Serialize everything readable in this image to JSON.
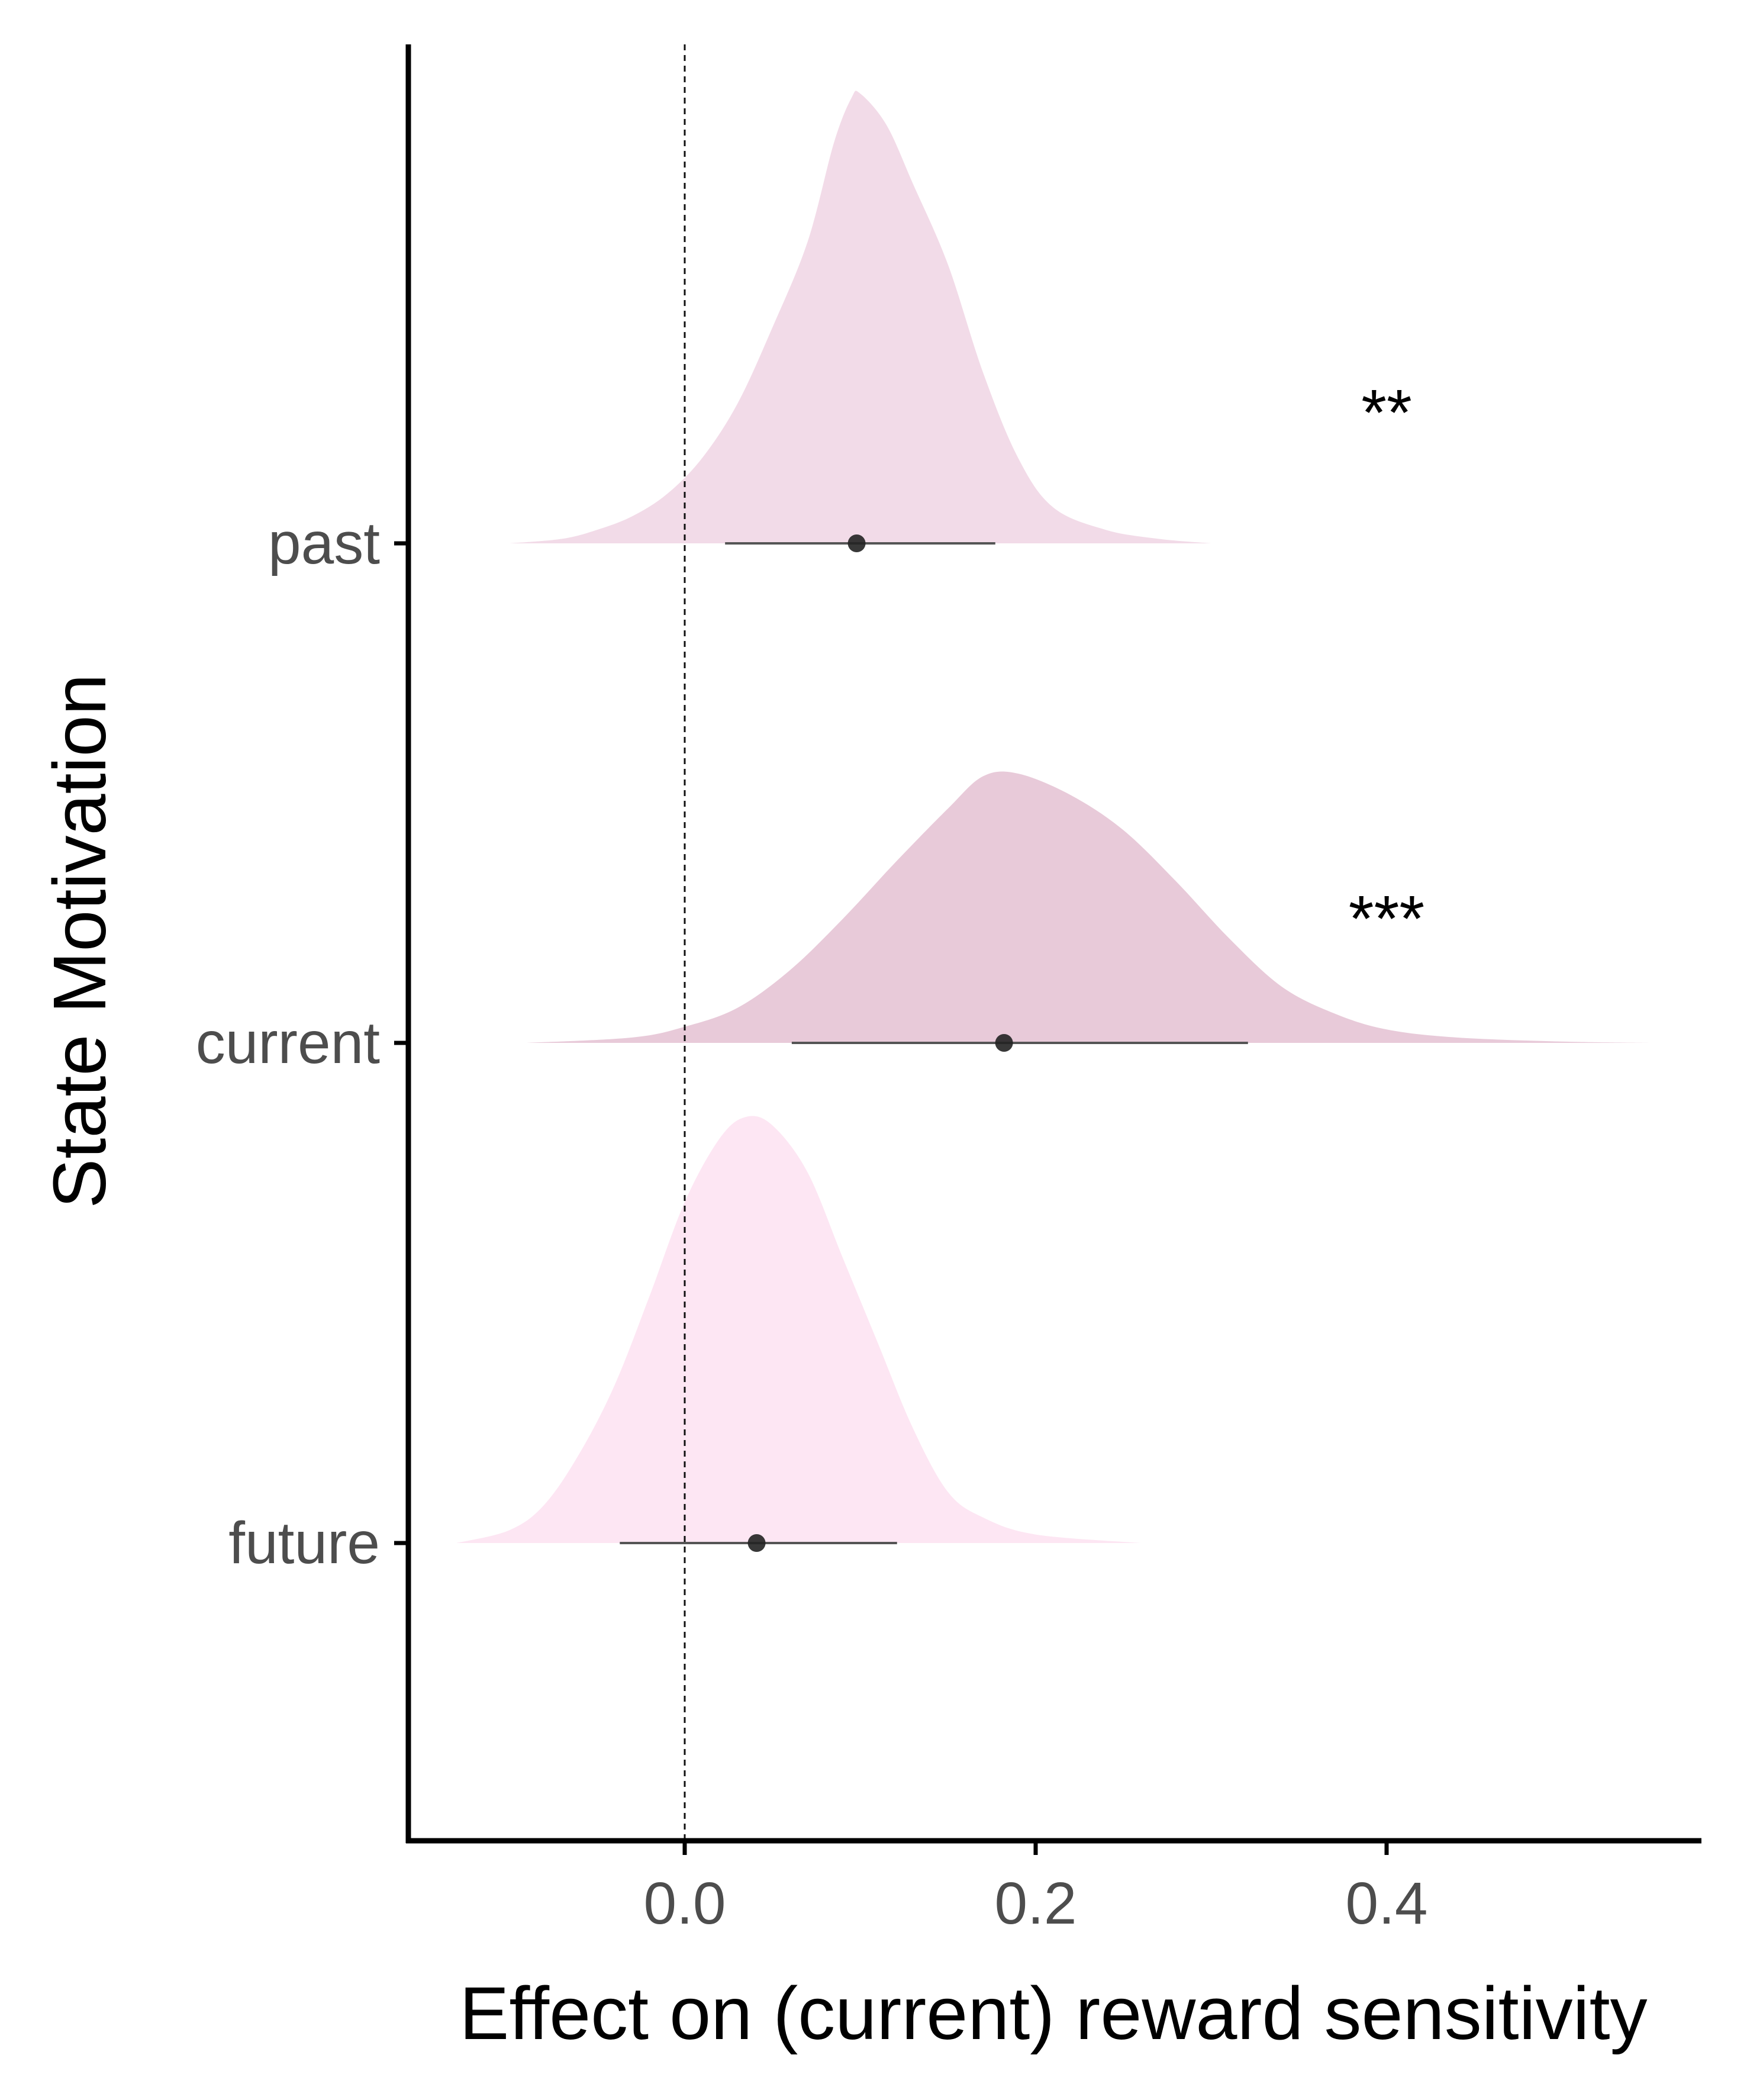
{
  "chart_data": {
    "type": "ridgeline",
    "title": "",
    "xlabel": "Effect on (current) reward sensitivity",
    "ylabel": "State Motivation",
    "xlim": [
      -0.157,
      0.583
    ],
    "x_ticks": [
      0.0,
      0.2,
      0.4
    ],
    "x_tick_labels": [
      "0.0",
      "0.2",
      "0.4"
    ],
    "reference_line": {
      "x": 0,
      "style": "dashed"
    },
    "grid": false,
    "categories": [
      "future",
      "current",
      "past"
    ],
    "series": [
      {
        "category": "past",
        "color": "#f2dbe8",
        "median": 0.098,
        "interval": [
          0.023,
          0.177
        ],
        "significance": "**",
        "density": [
          [
            -0.1,
            0
          ],
          [
            -0.07,
            0.01
          ],
          [
            -0.05,
            0.03
          ],
          [
            -0.03,
            0.06
          ],
          [
            -0.01,
            0.11
          ],
          [
            0.01,
            0.19
          ],
          [
            0.03,
            0.31
          ],
          [
            0.05,
            0.48
          ],
          [
            0.07,
            0.67
          ],
          [
            0.085,
            0.89
          ],
          [
            0.095,
            0.99
          ],
          [
            0.1,
            1.0
          ],
          [
            0.115,
            0.93
          ],
          [
            0.13,
            0.8
          ],
          [
            0.15,
            0.62
          ],
          [
            0.17,
            0.38
          ],
          [
            0.19,
            0.19
          ],
          [
            0.21,
            0.08
          ],
          [
            0.24,
            0.03
          ],
          [
            0.27,
            0.01
          ],
          [
            0.3,
            0
          ]
        ]
      },
      {
        "category": "current",
        "color": "#e8cad9",
        "median": 0.182,
        "interval": [
          0.061,
          0.321
        ],
        "significance": "***",
        "density": [
          [
            -0.09,
            0
          ],
          [
            -0.03,
            0.02
          ],
          [
            0.0,
            0.06
          ],
          [
            0.03,
            0.13
          ],
          [
            0.06,
            0.27
          ],
          [
            0.09,
            0.46
          ],
          [
            0.12,
            0.67
          ],
          [
            0.15,
            0.87
          ],
          [
            0.17,
            0.99
          ],
          [
            0.19,
            1.0
          ],
          [
            0.22,
            0.92
          ],
          [
            0.25,
            0.79
          ],
          [
            0.28,
            0.6
          ],
          [
            0.31,
            0.39
          ],
          [
            0.34,
            0.21
          ],
          [
            0.37,
            0.11
          ],
          [
            0.4,
            0.05
          ],
          [
            0.44,
            0.02
          ],
          [
            0.5,
            0.005
          ],
          [
            0.55,
            0
          ]
        ]
      },
      {
        "category": "future",
        "color": "#fde6f3",
        "median": 0.041,
        "interval": [
          -0.037,
          0.121
        ],
        "significance": "",
        "density": [
          [
            -0.13,
            0
          ],
          [
            -0.1,
            0.03
          ],
          [
            -0.08,
            0.09
          ],
          [
            -0.06,
            0.21
          ],
          [
            -0.04,
            0.37
          ],
          [
            -0.02,
            0.58
          ],
          [
            0.0,
            0.8
          ],
          [
            0.02,
            0.95
          ],
          [
            0.035,
            1.0
          ],
          [
            0.05,
            0.98
          ],
          [
            0.07,
            0.87
          ],
          [
            0.09,
            0.67
          ],
          [
            0.11,
            0.47
          ],
          [
            0.13,
            0.27
          ],
          [
            0.15,
            0.12
          ],
          [
            0.17,
            0.06
          ],
          [
            0.2,
            0.02
          ],
          [
            0.26,
            0
          ]
        ]
      }
    ]
  }
}
